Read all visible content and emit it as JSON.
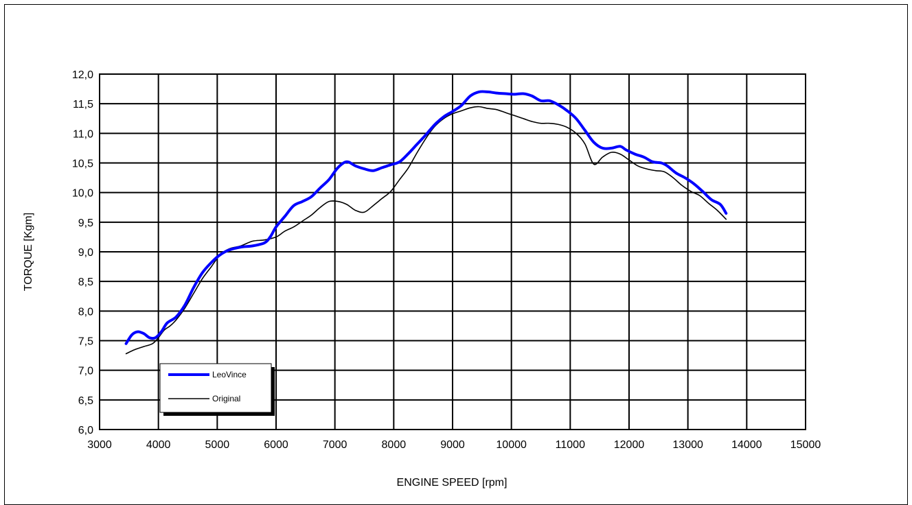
{
  "chart_data": {
    "type": "line",
    "title": "",
    "xlabel": "ENGINE SPEED [rpm]",
    "ylabel": "TORQUE [Kgm]",
    "xlim": [
      3000,
      15000
    ],
    "ylim": [
      6.0,
      12.0
    ],
    "x_ticks": [
      "3000",
      "4000",
      "5000",
      "6000",
      "7000",
      "8000",
      "9000",
      "10000",
      "11000",
      "12000",
      "13000",
      "14000",
      "15000"
    ],
    "y_ticks": [
      "6,0",
      "6,5",
      "7,0",
      "7,5",
      "8,0",
      "8,5",
      "9,0",
      "9,5",
      "10,0",
      "10,5",
      "11,0",
      "11,5",
      "12,0"
    ],
    "grid": true,
    "legend_position": "bottom-left",
    "series": [
      {
        "name": "LeoVince",
        "color": "#0000ff",
        "x": [
          3450,
          3550,
          3650,
          3750,
          3850,
          3950,
          4050,
          4150,
          4300,
          4450,
          4600,
          4750,
          4900,
          5050,
          5200,
          5400,
          5600,
          5800,
          5900,
          6000,
          6150,
          6300,
          6450,
          6600,
          6750,
          6900,
          7050,
          7200,
          7350,
          7500,
          7650,
          7800,
          7950,
          8100,
          8250,
          8400,
          8550,
          8700,
          8850,
          9000,
          9150,
          9300,
          9450,
          9600,
          9750,
          9900,
          10050,
          10200,
          10350,
          10500,
          10650,
          10800,
          10950,
          11100,
          11250,
          11400,
          11550,
          11700,
          11850,
          11950,
          12100,
          12250,
          12400,
          12550,
          12650,
          12800,
          12950,
          13100,
          13250,
          13400,
          13550,
          13650
        ],
        "y": [
          7.45,
          7.6,
          7.65,
          7.62,
          7.55,
          7.55,
          7.65,
          7.8,
          7.9,
          8.1,
          8.4,
          8.65,
          8.82,
          8.95,
          9.03,
          9.08,
          9.1,
          9.15,
          9.25,
          9.42,
          9.6,
          9.78,
          9.85,
          9.93,
          10.08,
          10.22,
          10.42,
          10.52,
          10.45,
          10.4,
          10.37,
          10.42,
          10.47,
          10.52,
          10.66,
          10.82,
          10.98,
          11.15,
          11.28,
          11.37,
          11.47,
          11.63,
          11.7,
          11.7,
          11.68,
          11.67,
          11.66,
          11.67,
          11.63,
          11.55,
          11.55,
          11.48,
          11.38,
          11.25,
          11.05,
          10.85,
          10.75,
          10.75,
          10.78,
          10.72,
          10.65,
          10.6,
          10.52,
          10.5,
          10.45,
          10.33,
          10.25,
          10.15,
          10.02,
          9.88,
          9.8,
          9.65
        ]
      },
      {
        "name": "Original",
        "color": "#000000",
        "x": [
          3450,
          3600,
          3750,
          3900,
          4000,
          4100,
          4200,
          4300,
          4450,
          4600,
          4750,
          4900,
          5050,
          5200,
          5400,
          5600,
          5800,
          6000,
          6150,
          6300,
          6450,
          6600,
          6750,
          6900,
          7050,
          7200,
          7350,
          7500,
          7650,
          7800,
          7950,
          8100,
          8250,
          8400,
          8550,
          8700,
          8850,
          9000,
          9150,
          9300,
          9450,
          9600,
          9750,
          9900,
          10050,
          10200,
          10350,
          10500,
          10650,
          10800,
          10950,
          11100,
          11250,
          11400,
          11550,
          11700,
          11850,
          12000,
          12150,
          12300,
          12450,
          12600,
          12750,
          12900,
          13050,
          13200,
          13350,
          13500,
          13650
        ],
        "y": [
          7.28,
          7.35,
          7.4,
          7.45,
          7.55,
          7.68,
          7.75,
          7.85,
          8.05,
          8.3,
          8.55,
          8.75,
          8.95,
          9.05,
          9.1,
          9.18,
          9.2,
          9.25,
          9.35,
          9.42,
          9.52,
          9.62,
          9.75,
          9.85,
          9.85,
          9.8,
          9.7,
          9.67,
          9.78,
          9.9,
          10.02,
          10.22,
          10.42,
          10.68,
          10.92,
          11.12,
          11.25,
          11.33,
          11.38,
          11.43,
          11.45,
          11.42,
          11.4,
          11.35,
          11.3,
          11.25,
          11.2,
          11.17,
          11.17,
          11.15,
          11.1,
          11.0,
          10.82,
          10.48,
          10.6,
          10.68,
          10.65,
          10.55,
          10.45,
          10.4,
          10.37,
          10.35,
          10.25,
          10.12,
          10.02,
          9.95,
          9.82,
          9.7,
          9.55
        ]
      }
    ]
  }
}
